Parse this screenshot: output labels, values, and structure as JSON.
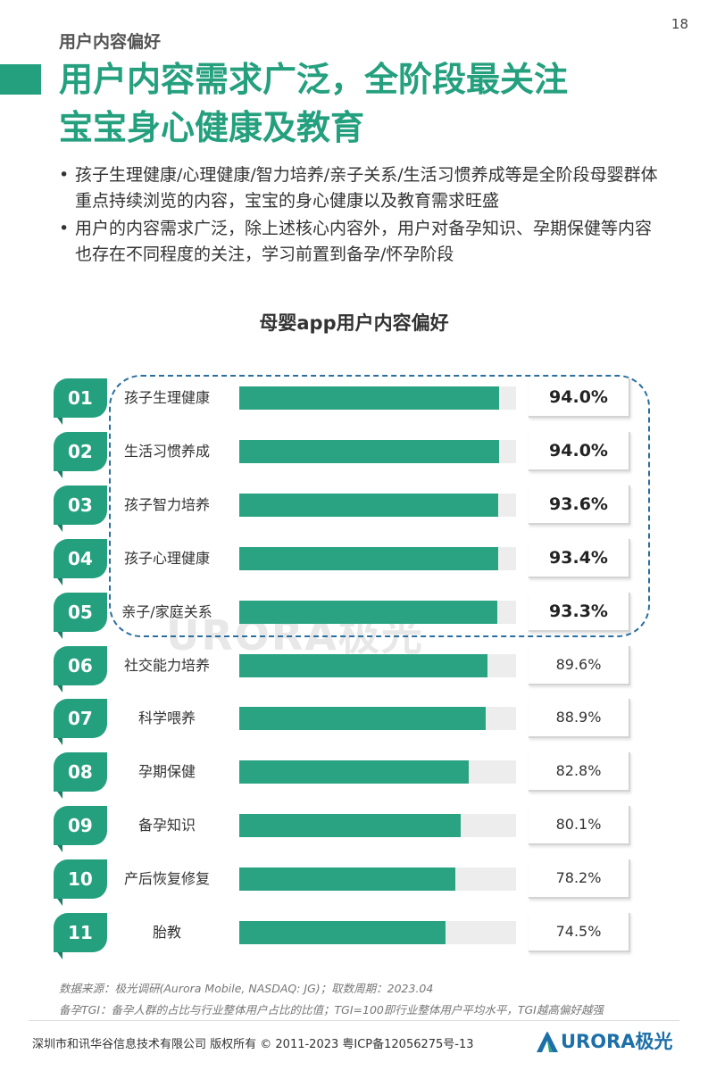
{
  "page_number": "18",
  "section_label": "用户内容偏好",
  "title_line1": "用户内容需求广泛，全阶段最关注",
  "title_line2": "宝宝身心健康及教育",
  "bullets": [
    "孩子生理健康/心理健康/智力培养/亲子关系/生活习惯养成等是全阶段母婴群体重点持续浏览的内容，宝宝的身心健康以及教育需求旺盛",
    "用户的内容需求广泛，除上述核心内容外，用户对备孕知识、孕期保健等内容也存在不同程度的关注，学习前置到备孕/怀孕阶段"
  ],
  "bullet_dot": "•",
  "chart_data": {
    "type": "bar",
    "title": "母婴app用户内容偏好",
    "categories": [
      "孩子生理健康",
      "生活习惯养成",
      "孩子智力培养",
      "孩子心理健康",
      "亲子/家庭关系",
      "社交能力培养",
      "科学喂养",
      "孕期保健",
      "备孕知识",
      "产后恢复修复",
      "胎教"
    ],
    "ranks": [
      "01",
      "02",
      "03",
      "04",
      "05",
      "06",
      "07",
      "08",
      "09",
      "10",
      "11"
    ],
    "values": [
      94.0,
      94.0,
      93.6,
      93.4,
      93.3,
      89.6,
      88.9,
      82.8,
      80.1,
      78.2,
      74.5
    ],
    "value_labels": [
      "94.0%",
      "94.0%",
      "93.6%",
      "93.4%",
      "93.3%",
      "89.6%",
      "88.9%",
      "82.8%",
      "80.1%",
      "78.2%",
      "74.5%"
    ],
    "highlighted_count": 5,
    "ylim": [
      0,
      100
    ],
    "bar_color": "#2aa383",
    "track_color": "#ededed",
    "accent_color": "#24a07e"
  },
  "watermark": "URORA极光",
  "source": "数据来源：极光调研(Aurora Mobile, NASDAQ: JG)；取数周期：2023.04",
  "note": "备孕TGI：备孕人群的占比与行业整体用户占比的比值；TGI=100即行业整体用户平均水平，TGI越高偏好越强",
  "footer": "深圳市和讯华谷信息技术有限公司 版权所有 © 2011-2023 粤ICP备12056275号-13",
  "logo": {
    "text": "URORA极光",
    "icon": "aurora-logo-icon",
    "color": "#1d6fa8"
  }
}
